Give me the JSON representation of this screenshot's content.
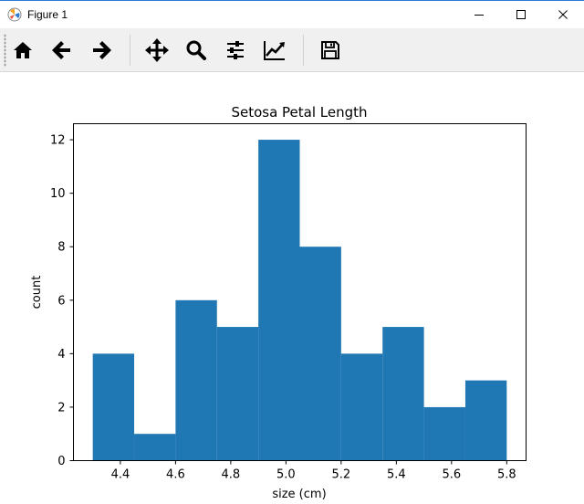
{
  "window": {
    "title": "Figure 1"
  },
  "toolbar": {
    "buttons": [
      {
        "icon": "home-icon"
      },
      {
        "icon": "back-arrow-icon"
      },
      {
        "icon": "forward-arrow-icon"
      },
      {
        "icon": "pan-icon"
      },
      {
        "icon": "zoom-icon"
      },
      {
        "icon": "subplots-config-icon"
      },
      {
        "icon": "edit-axis-icon"
      },
      {
        "icon": "save-icon"
      }
    ]
  },
  "chart_data": {
    "type": "bar",
    "title": "Setosa Petal Length",
    "xlabel": "size (cm)",
    "ylabel": "count",
    "bins": [
      {
        "start": 4.3,
        "end": 4.45,
        "count": 4
      },
      {
        "start": 4.45,
        "end": 4.6,
        "count": 1
      },
      {
        "start": 4.6,
        "end": 4.75,
        "count": 6
      },
      {
        "start": 4.75,
        "end": 4.9,
        "count": 5
      },
      {
        "start": 4.9,
        "end": 5.05,
        "count": 12
      },
      {
        "start": 5.05,
        "end": 5.2,
        "count": 8
      },
      {
        "start": 5.2,
        "end": 5.35,
        "count": 4
      },
      {
        "start": 5.35,
        "end": 5.5,
        "count": 5
      },
      {
        "start": 5.5,
        "end": 5.65,
        "count": 2
      },
      {
        "start": 5.65,
        "end": 5.8,
        "count": 3
      }
    ],
    "xlim": [
      4.23,
      5.87
    ],
    "ylim": [
      0,
      12.6
    ],
    "xticks": [
      "4.4",
      "4.6",
      "4.8",
      "5.0",
      "5.2",
      "5.4",
      "5.6",
      "5.8"
    ],
    "yticks": [
      "0",
      "2",
      "4",
      "6",
      "8",
      "10",
      "12"
    ],
    "bar_color": "#1f77b4",
    "grid": false,
    "legend": "none"
  }
}
